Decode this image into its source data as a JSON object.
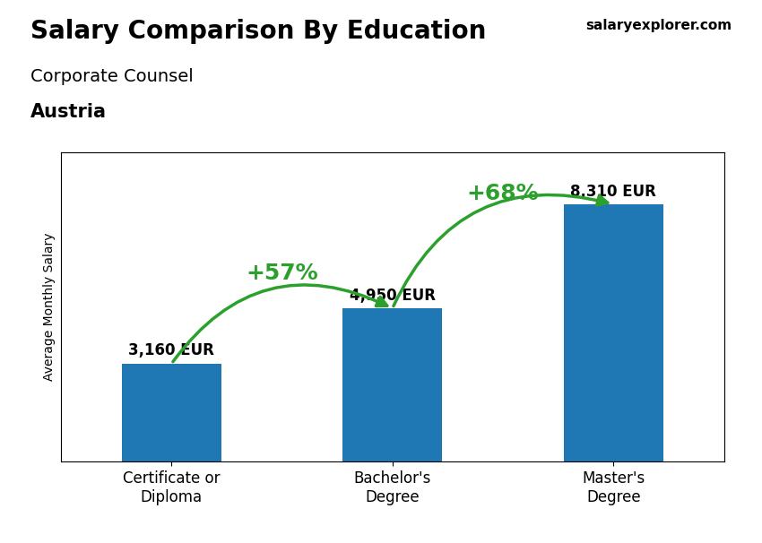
{
  "chart_data": {
    "type": "bar",
    "title": "Salary Comparison By Education",
    "subtitle": [
      "Corporate Counsel",
      "Austria"
    ],
    "ylabel": "Average Monthly Salary",
    "categories": [
      "Certificate or\nDiploma",
      "Bachelor's\nDegree",
      "Master's\nDegree"
    ],
    "values": [
      3160,
      4950,
      8310
    ],
    "value_labels": [
      "3,160 EUR",
      "4,950 EUR",
      "8,310 EUR"
    ],
    "data_labels": true,
    "ylim": [
      0,
      10000
    ],
    "tick_labels": "x",
    "grid": false,
    "annotations": [
      {
        "text": "+57%",
        "from": "Certificate or\nDiploma",
        "to": "Bachelor's\nDegree"
      },
      {
        "text": "+68%",
        "from": "Bachelor's\nDegree",
        "to": "Master's\nDegree"
      },
      {
        "text": "salaryexplorer.com"
      }
    ]
  }
}
